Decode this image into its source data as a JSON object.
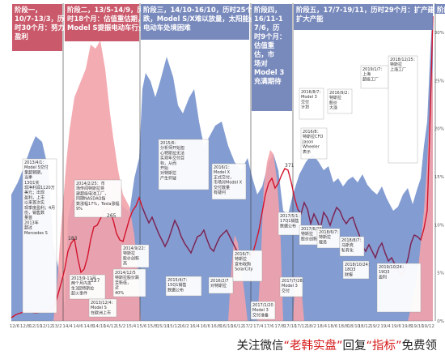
{
  "chart_data": {
    "type": "area",
    "phases": [
      {
        "lines": [
          "阶段一，",
          "10/7-13/3，历",
          "时30个月：努力",
          "盈利"
        ]
      },
      {
        "lines": [
          "阶段二，13/5-14/9，历",
          "时18个月：估值重估期，",
          "Model S提振电动车行业"
        ]
      },
      {
        "lines": [
          "阶段三，14/10-16/10，历时25个月：油价暴",
          "跌，Model S/X难以放量，太阳能业务启动，",
          "电动车处境困难"
        ]
      },
      {
        "lines": [
          "阶段四，",
          "16/11-1",
          "7/6，历",
          "时9个月：",
          "估值重",
          "估，市",
          "场对",
          "Model 3",
          "充满期待"
        ]
      },
      {
        "lines": [
          "阶段五，17/7-19/11，历时29个月：扩产建厂，",
          "扩大产能"
        ]
      },
      {
        "lines": [
          "阶段六"
        ]
      }
    ],
    "x_ticks": [
      "12/6",
      "12/8",
      "12/10",
      "12/12",
      "13/2",
      "14/4",
      "14/6",
      "14/8",
      "14/10",
      "14/12",
      "15/2",
      "15/4",
      "15/6",
      "15/8",
      "15/10",
      "15/12",
      "16/2",
      "16/4",
      "16/6",
      "16/8",
      "16/10",
      "16/12",
      "17/2",
      "17/4",
      "17/6",
      "17/8",
      "17/10",
      "17/12",
      "18/2",
      "18/4",
      "18/6",
      "18/8",
      "18/10",
      "18/12",
      "19/2",
      "19/4",
      "19/6",
      "19/8",
      "19/10",
      "19/12"
    ],
    "y_ticks_right": [
      "30%",
      "25%",
      "20%",
      "15%",
      "10%",
      "5%",
      "0%"
    ],
    "data_labels": [
      "183",
      "127",
      "265",
      "371"
    ],
    "annotations": [
      {
        "lines": [
          "2013/4/1：",
          "Model S交付",
          "量超预期，",
          "当季",
          "13Q1实",
          "现净利润1120万",
          "美元；出现",
          "盈利，上市",
          "以来首次实",
          "现季度盈利；4月",
          "份，销售数",
          "量首",
          "2013年",
          "超过",
          "Mercedes S"
        ]
      },
      {
        "lines": [
          "2013/9-11月",
          "两个月内发",
          "生3起特斯拉",
          "起火事件"
        ]
      },
      {
        "lines": [
          "2013/12/4：",
          "Model S",
          "在欧洲上市"
        ]
      },
      {
        "lines": [
          "2014/2/25：市",
          "场传闻特斯拉将",
          "建超级电池工厂，",
          "同期NASDAQ指",
          "数涨幅17%，Tesla涨幅",
          "9%"
        ]
      },
      {
        "lines": [
          "2014/9/22：",
          "特斯拉",
          "股价创新",
          "高"
        ]
      },
      {
        "lines": [
          "2014/12/5",
          "特斯拉股价跌",
          "至新低，",
          "近",
          "40%"
        ]
      },
      {
        "lines": [
          "2015/6：",
          "分析师开始担",
          "心特斯拉无法",
          "实现年交付目",
          "标，从而",
          "开始",
          "对特斯拉",
          "产生怀疑"
        ]
      },
      {
        "lines": [
          "2016/1：",
          "Model X",
          "正式交付，",
          "市场对Model X",
          "交付数量",
          "有疑问"
        ]
      },
      {
        "lines": [
          "2015/4/7：",
          "15Q1销售",
          "数据公布"
        ]
      },
      {
        "lines": [
          "2016/2/7",
          "对特斯拉"
        ]
      },
      {
        "lines": [
          "2016/7：",
          "特斯拉",
          "宣布收购",
          "SolarCity"
        ]
      },
      {
        "lines": [
          "2016/8/7：",
          "Model 3",
          "交付",
          "计划"
        ]
      },
      {
        "lines": [
          "2016/8：",
          "特斯拉CFO",
          "Jason",
          "Wheeler",
          "表示"
        ]
      },
      {
        "lines": [
          "2016/9/2：",
          "特斯拉",
          "股价",
          "大涨"
        ]
      },
      {
        "lines": [
          "2017/5/1：",
          "17Q1销售",
          "数据公布"
        ]
      },
      {
        "lines": [
          "2017/6/29：",
          "特斯拉",
          "股价创新高"
        ]
      },
      {
        "lines": [
          "2017/7/28：",
          "Model 3",
          "交付"
        ]
      },
      {
        "lines": [
          "2017/1/20",
          "Model 3",
          "交付准备"
        ]
      },
      {
        "lines": [
          "2018/6/7：",
          "特斯拉",
          "裁员"
        ]
      },
      {
        "lines": [
          "2018/8/7：",
          "马斯克",
          "私有化"
        ]
      },
      {
        "lines": [
          "2018/10/24：",
          "18Q3",
          "财报"
        ]
      },
      {
        "lines": [
          "2019/1/7：",
          "上海",
          "超级工厂"
        ]
      },
      {
        "lines": [
          "2018/12/25：",
          "特斯拉",
          "上海工厂"
        ]
      },
      {
        "lines": [
          "2019/10/24：",
          "19Q3",
          "盈利"
        ]
      }
    ]
  },
  "footer": {
    "text_before": "关注微信",
    "text_quote1": "“老韩实盘”",
    "text_mid": "回复",
    "text_quote2": "“指标”",
    "text_after": "免费领"
  }
}
